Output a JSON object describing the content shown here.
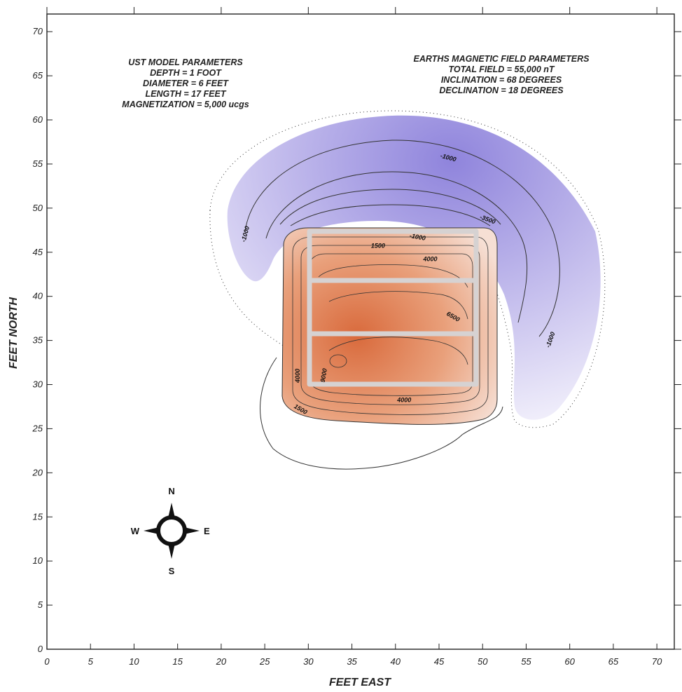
{
  "chart_data": {
    "type": "contour",
    "title": "",
    "xlabel": "FEET EAST",
    "ylabel": "FEET NORTH",
    "xlim": [
      0,
      72
    ],
    "ylim": [
      0,
      72
    ],
    "xticks": [
      "0",
      "5",
      "10",
      "15",
      "20",
      "25",
      "30",
      "35",
      "40",
      "45",
      "50",
      "55",
      "60",
      "65",
      "70"
    ],
    "yticks": [
      "0",
      "5",
      "10",
      "15",
      "20",
      "25",
      "30",
      "35",
      "40",
      "45",
      "50",
      "55",
      "60",
      "65",
      "70"
    ],
    "grid": false,
    "model_parameters": {
      "heading": "UST MODEL PARAMETERS",
      "lines": [
        "DEPTH = 1 FOOT",
        "DIAMETER = 6 FEET",
        "LENGTH = 17 FEET",
        "MAGNETIZATION = 5,000 ucgs"
      ]
    },
    "field_parameters": {
      "heading": "EARTHS MAGNETIC FIELD PARAMETERS",
      "lines": [
        "TOTAL FIELD = 55,000 nT",
        "INCLINATION = 68 DEGREES",
        "DECLINATION = 18 DEGREES"
      ]
    },
    "contour_labels": [
      {
        "text": "-1000",
        "x": 46,
        "y": 55.5,
        "rot": 15
      },
      {
        "text": "-3500",
        "x": 50.5,
        "y": 48.5,
        "rot": 20
      },
      {
        "text": "-1000",
        "x": 42.5,
        "y": 46.5,
        "rot": 10
      },
      {
        "text": "1500",
        "x": 38,
        "y": 45.5,
        "rot": 0
      },
      {
        "text": "4000",
        "x": 44,
        "y": 44,
        "rot": 0
      },
      {
        "text": "6500",
        "x": 46.5,
        "y": 37.5,
        "rot": 30
      },
      {
        "text": "9000",
        "x": 32,
        "y": 31,
        "rot": -80
      },
      {
        "text": "4000",
        "x": 29,
        "y": 31,
        "rot": -90
      },
      {
        "text": "1500",
        "x": 29,
        "y": 27,
        "rot": 30
      },
      {
        "text": "4000",
        "x": 41,
        "y": 28,
        "rot": 0
      },
      {
        "text": "-1000",
        "x": 23,
        "y": 47,
        "rot": -75
      },
      {
        "text": "-1000",
        "x": 58,
        "y": 35,
        "rot": -70
      }
    ],
    "colors": {
      "positive": "#d96a3c",
      "negative": "#8f84dc",
      "tank_outline": "#d6d2d2"
    },
    "tank_outline": {
      "x0": 30.5,
      "x1": 49.5,
      "y_sections": [
        47,
        41.5,
        36,
        30
      ]
    },
    "compass": {
      "n": "N",
      "s": "S",
      "e": "E",
      "w": "W",
      "center_x": 14,
      "center_y": 13.5
    }
  }
}
